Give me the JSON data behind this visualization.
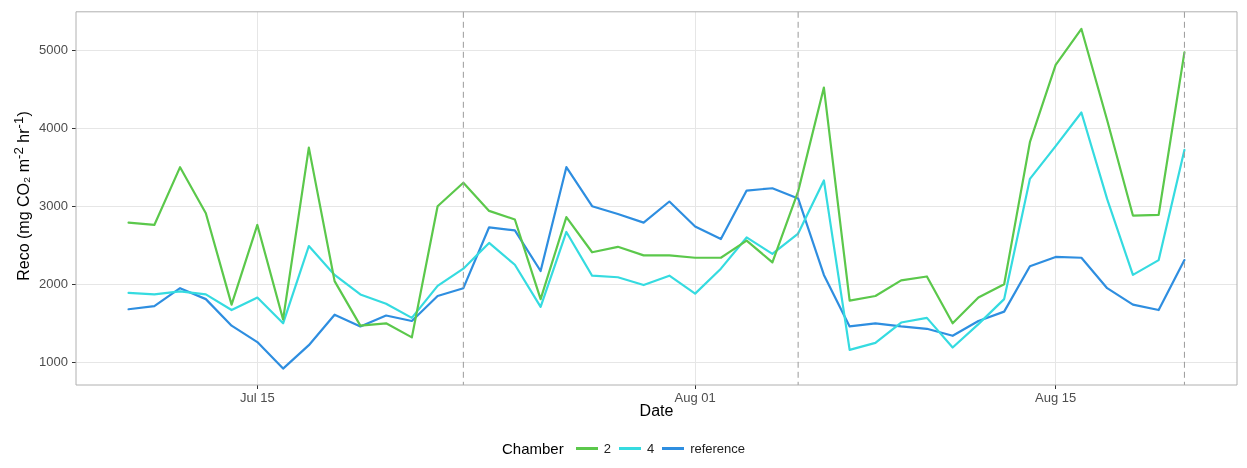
{
  "chart_data": {
    "type": "line",
    "xlabel": "Date",
    "ylabel": "Reco (mg CO₂ m$^{-2}$ hr$^{-1}$)",
    "legend_title": "Chamber",
    "x": [
      "--07-10",
      "--07-11",
      "--07-12",
      "--07-13",
      "--07-14",
      "--07-15",
      "--07-16",
      "--07-17",
      "--07-18",
      "--07-19",
      "--07-20",
      "--07-21",
      "--07-22",
      "--07-23",
      "--07-24",
      "--07-25",
      "--07-26",
      "--07-27",
      "--07-28",
      "--07-29",
      "--07-30",
      "--07-31",
      "--08-01",
      "--08-02",
      "--08-03",
      "--08-04",
      "--08-05",
      "--08-06",
      "--08-07",
      "--08-08",
      "--08-09",
      "--08-10",
      "--08-11",
      "--08-12",
      "--08-13",
      "--08-14",
      "--08-15",
      "--08-16",
      "--08-17",
      "--08-18",
      "--08-19",
      "--08-20"
    ],
    "series": [
      {
        "name": "2",
        "color": "#5bc84b",
        "values": [
          2790,
          2760,
          3500,
          2910,
          1740,
          2760,
          1550,
          3750,
          2040,
          1470,
          1500,
          1320,
          3000,
          3300,
          2940,
          2830,
          1810,
          2860,
          2410,
          2480,
          2370,
          2370,
          2340,
          2340,
          2560,
          2280,
          3190,
          4520,
          1790,
          1850,
          2050,
          2100,
          1500,
          1830,
          2000,
          3820,
          4810,
          5270,
          4100,
          2880,
          2890,
          4970
        ]
      },
      {
        "name": "4",
        "color": "#35dbe0",
        "values": [
          1890,
          1870,
          1910,
          1870,
          1670,
          1830,
          1500,
          2490,
          2120,
          1870,
          1750,
          1570,
          1980,
          2200,
          2530,
          2250,
          1710,
          2670,
          2110,
          2090,
          1990,
          2110,
          1880,
          2200,
          2600,
          2390,
          2650,
          3330,
          1160,
          1250,
          1510,
          1570,
          1190,
          1490,
          1810,
          3350,
          3770,
          4200,
          3090,
          2120,
          2310,
          3720
        ]
      },
      {
        "name": "reference",
        "color": "#2e8ee0",
        "values": [
          1680,
          1720,
          1950,
          1810,
          1470,
          1260,
          920,
          1220,
          1610,
          1460,
          1600,
          1530,
          1850,
          1950,
          2730,
          2690,
          2170,
          3500,
          3000,
          2900,
          2790,
          3060,
          2740,
          2580,
          3200,
          3230,
          3100,
          2120,
          1460,
          1500,
          1460,
          1430,
          1340,
          1530,
          1650,
          2230,
          2350,
          2340,
          1950,
          1740,
          1670,
          2310
        ]
      }
    ],
    "xlim": [
      "--07-07T23:00",
      "--08-22T01:00"
    ],
    "xticks": [
      {
        "value": "--07-15",
        "label": "Jul 15"
      },
      {
        "value": "--08-01",
        "label": "Aug 01"
      },
      {
        "value": "--08-15",
        "label": "Aug 15"
      }
    ],
    "ylim": [
      710,
      5490
    ],
    "yticks": [
      1000,
      2000,
      3000,
      4000,
      5000
    ],
    "ref_lines": [
      {
        "axis": "x",
        "value": "--07-23",
        "color": "#9a9a9a",
        "line_style": "dashed"
      },
      {
        "axis": "x",
        "value": "--08-05",
        "color": "#9a9a9a",
        "line_style": "dashed"
      },
      {
        "axis": "x",
        "value": "--08-20",
        "color": "#9a9a9a",
        "line_style": "dashed"
      }
    ],
    "grid": true,
    "legend": "bottom",
    "marker": "none",
    "line_style": "solid"
  }
}
